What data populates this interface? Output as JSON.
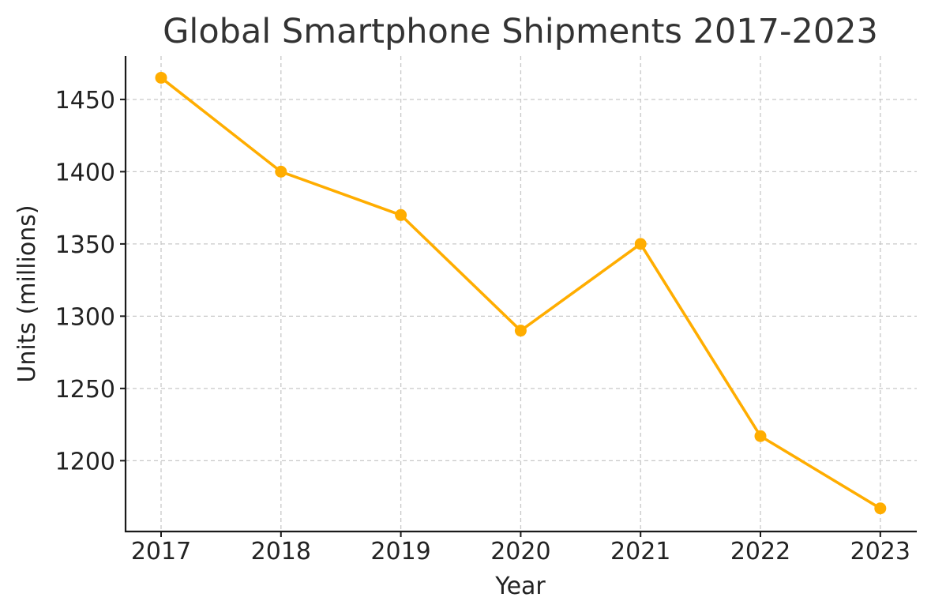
{
  "chart_data": {
    "type": "line",
    "title": "Global Smartphone Shipments 2017-2023",
    "xlabel": "Year",
    "ylabel": "Units (millions)",
    "x": [
      "2017",
      "2018",
      "2019",
      "2020",
      "2021",
      "2022",
      "2023"
    ],
    "series": [
      {
        "values": [
          1465,
          1400,
          1370,
          1290,
          1350,
          1217,
          1167
        ]
      }
    ],
    "yticks": [
      1200,
      1250,
      1300,
      1350,
      1400,
      1450
    ],
    "ylim": [
      1151,
      1480
    ],
    "grid": true,
    "line_color": "#FFAD00",
    "marker": "circle"
  }
}
